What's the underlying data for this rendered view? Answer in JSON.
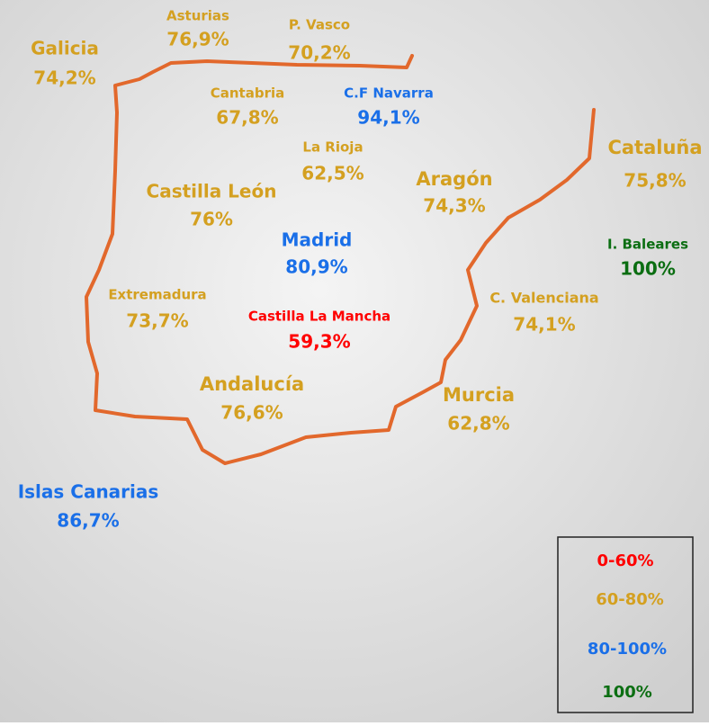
{
  "regions": [
    {
      "name": "Asturias",
      "value": "76,9%",
      "color": "#d4a020"
    },
    {
      "name": "P. Vasco",
      "value": "70,2%",
      "color": "#d4a020"
    },
    {
      "name": "Galicia",
      "value": "74,2%",
      "color": "#d4a020"
    },
    {
      "name": "Cantabria",
      "value": "67,8%",
      "color": "#d4a020"
    },
    {
      "name": "C.F Navarra",
      "value": "94,1%",
      "color": "#1a6fe8"
    },
    {
      "name": "La Rioja",
      "value": "62,5%",
      "color": "#d4a020"
    },
    {
      "name": "Castilla León",
      "value": "76%",
      "color": "#d4a020"
    },
    {
      "name": "Aragón",
      "value": "74,3%",
      "color": "#d4a020"
    },
    {
      "name": "Cataluña",
      "value": "75,8%",
      "color": "#d4a020"
    },
    {
      "name": "Madrid",
      "value": "80,9%",
      "color": "#1a6fe8"
    },
    {
      "name": "I. Baleares",
      "value": "100%",
      "color": "#0b6e12"
    },
    {
      "name": "Extremadura",
      "value": "73,7%",
      "color": "#d4a020"
    },
    {
      "name": "Castilla La Mancha",
      "value": "59,3%",
      "color": "#ff0000"
    },
    {
      "name": "C. Valenciana",
      "value": "74,1%",
      "color": "#d4a020"
    },
    {
      "name": "Andalucía",
      "value": "76,6%",
      "color": "#d4a020"
    },
    {
      "name": "Murcia",
      "value": "62,8%",
      "color": "#d4a020"
    },
    {
      "name": "Islas Canarias",
      "value": "86,7%",
      "color": "#1a6fe8"
    }
  ],
  "legend": [
    {
      "label": "0-60%",
      "color": "#ff0000"
    },
    {
      "label": "60-80%",
      "color": "#d4a020"
    },
    {
      "label": "80-100%",
      "color": "#1a6fe8"
    },
    {
      "label": "100%",
      "color": "#0b6e12"
    }
  ]
}
